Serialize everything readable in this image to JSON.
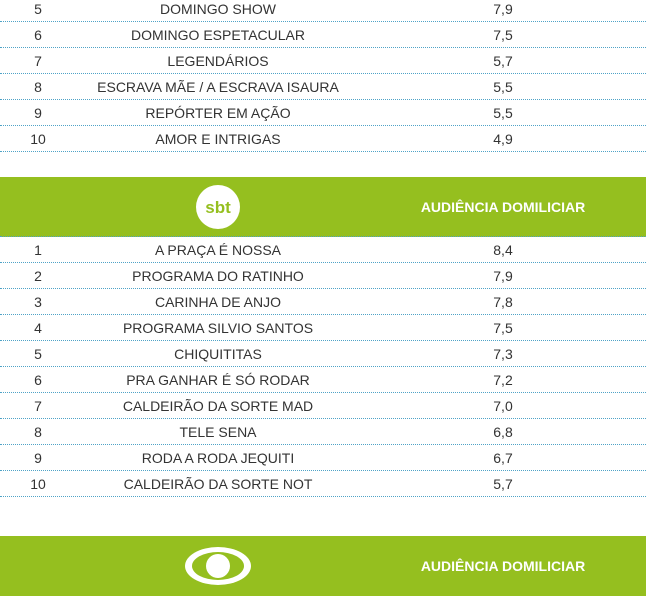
{
  "top_table": [
    {
      "rank": "5",
      "program": "DOMINGO SHOW",
      "score": "7,9"
    },
    {
      "rank": "6",
      "program": "DOMINGO ESPETACULAR",
      "score": "7,5"
    },
    {
      "rank": "7",
      "program": "LEGENDÁRIOS",
      "score": "5,7"
    },
    {
      "rank": "8",
      "program": "ESCRAVA MÃE / A ESCRAVA ISAURA",
      "score": "5,5"
    },
    {
      "rank": "9",
      "program": "REPÓRTER EM AÇÃO",
      "score": "5,5"
    },
    {
      "rank": "10",
      "program": "AMOR E INTRIGAS",
      "score": "4,9"
    }
  ],
  "sbt_section": {
    "logo_icon": "sbt-logo",
    "header": "AUDIÊNCIA DOMILICIAR",
    "rows": [
      {
        "rank": "1",
        "program": "A PRAÇA É NOSSA",
        "score": "8,4"
      },
      {
        "rank": "2",
        "program": "PROGRAMA DO RATINHO",
        "score": "7,9"
      },
      {
        "rank": "3",
        "program": "CARINHA DE ANJO",
        "score": "7,8"
      },
      {
        "rank": "4",
        "program": "PROGRAMA SILVIO SANTOS",
        "score": "7,5"
      },
      {
        "rank": "5",
        "program": "CHIQUITITAS",
        "score": "7,3"
      },
      {
        "rank": "6",
        "program": "PRA GANHAR É SÓ RODAR",
        "score": "7,2"
      },
      {
        "rank": "7",
        "program": "CALDEIRÃO DA SORTE MAD",
        "score": "7,0"
      },
      {
        "rank": "8",
        "program": "TELE SENA",
        "score": "6,8"
      },
      {
        "rank": "9",
        "program": "RODA A RODA JEQUITI",
        "score": "6,7"
      },
      {
        "rank": "10",
        "program": "CALDEIRÃO DA SORTE NOT",
        "score": "5,7"
      }
    ]
  },
  "band_section": {
    "logo_icon": "band-eye-logo",
    "header": "AUDIÊNCIA DOMILICIAR"
  },
  "colors": {
    "band_green": "#95bf1f",
    "row_divider": "#4fa3c7",
    "text": "#333333"
  }
}
